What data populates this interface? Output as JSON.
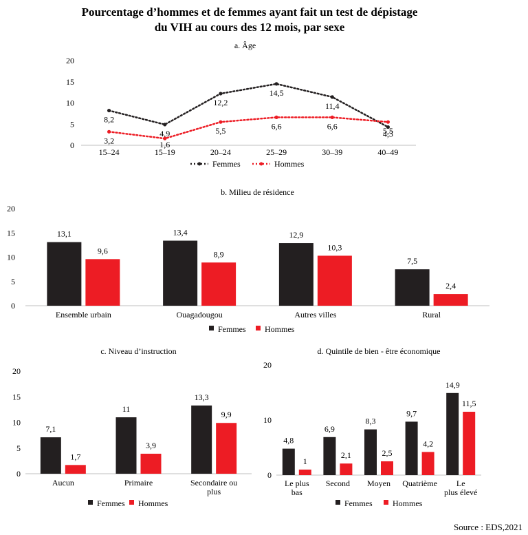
{
  "title_line1": "Pourcentage d’hommes et de femmes ayant fait un test de dépistage",
  "title_line2": "du VIH au cours des 12 mois, par sexe",
  "source": "Source : EDS,2021",
  "colors": {
    "femmes": "#231f20",
    "hommes": "#ed1c24"
  },
  "chart_data": [
    {
      "id": "a",
      "type": "line",
      "title": "a. Âge",
      "categories": [
        "15–24",
        "15–19",
        "20–24",
        "25–29",
        "30–39",
        "40–49"
      ],
      "ylim": [
        0,
        20
      ],
      "yticks": [
        0,
        5,
        10,
        15,
        20
      ],
      "series": [
        {
          "name": "Femmes",
          "values": [
            8.2,
            4.9,
            12.2,
            14.5,
            11.4,
            4.3
          ],
          "labels": [
            "8,2",
            "4,9",
            "12,2",
            "14,5",
            "11,4",
            "4,3"
          ]
        },
        {
          "name": "Hommes",
          "values": [
            3.2,
            1.6,
            5.5,
            6.6,
            6.6,
            5.5
          ],
          "labels": [
            "3,2",
            "1,6",
            "5,5",
            "6,6",
            "6,6",
            "5,5"
          ]
        }
      ],
      "legend": [
        "Femmes",
        "Hommes"
      ]
    },
    {
      "id": "b",
      "type": "bar",
      "title": "b. Milieu de résidence",
      "categories": [
        "Ensemble urbain",
        "Ouagadougou",
        "Autres villes",
        "Rural"
      ],
      "ylim": [
        0,
        20
      ],
      "yticks": [
        0,
        5,
        10,
        15,
        20
      ],
      "series": [
        {
          "name": "Femmes",
          "values": [
            13.1,
            13.4,
            12.9,
            7.5
          ],
          "labels": [
            "13,1",
            "13,4",
            "12,9",
            "7,5"
          ]
        },
        {
          "name": "Hommes",
          "values": [
            9.6,
            8.9,
            10.3,
            2.4
          ],
          "labels": [
            "9,6",
            "8,9",
            "10,3",
            "2,4"
          ]
        }
      ],
      "legend": [
        "Femmes",
        "Hommes"
      ]
    },
    {
      "id": "c",
      "type": "bar",
      "title": "c. Niveau d’instruction",
      "categories": [
        "Aucun",
        "Primaire",
        "Secondaire ou plus"
      ],
      "category_lines": [
        [
          "Aucun"
        ],
        [
          "Primaire"
        ],
        [
          "Secondaire ou",
          "plus"
        ]
      ],
      "ylim": [
        0,
        20
      ],
      "yticks": [
        0,
        5,
        10,
        15,
        20
      ],
      "series": [
        {
          "name": "Femmes",
          "values": [
            7.1,
            11,
            13.3
          ],
          "labels": [
            "7,1",
            "11",
            "13,3"
          ]
        },
        {
          "name": "Hommes",
          "values": [
            1.7,
            3.9,
            9.9
          ],
          "labels": [
            "1,7",
            "3,9",
            "9,9"
          ]
        }
      ],
      "legend": [
        "Femmes",
        "Hommes"
      ]
    },
    {
      "id": "d",
      "type": "bar",
      "title": "d. Quintile de bien - être économique",
      "categories": [
        "Le plus bas",
        "Second",
        "Moyen",
        "Quatrième",
        "Le plus élevé"
      ],
      "category_lines": [
        [
          "Le plus",
          "bas"
        ],
        [
          "Second"
        ],
        [
          "Moyen"
        ],
        [
          "Quatrième"
        ],
        [
          "Le",
          "plus élevé"
        ]
      ],
      "ylim": [
        0,
        20
      ],
      "yticks": [
        0,
        10,
        20
      ],
      "series": [
        {
          "name": "Femmes",
          "values": [
            4.8,
            6.9,
            8.3,
            9.7,
            14.9
          ],
          "labels": [
            "4,8",
            "6,9",
            "8,3",
            "9,7",
            "14,9"
          ]
        },
        {
          "name": "Hommes",
          "values": [
            1,
            2.1,
            2.5,
            4.2,
            11.5
          ],
          "labels": [
            "1",
            "2,1",
            "2,5",
            "4,2",
            "11,5"
          ]
        }
      ],
      "legend": [
        "Femmes",
        "Hommes"
      ]
    }
  ]
}
